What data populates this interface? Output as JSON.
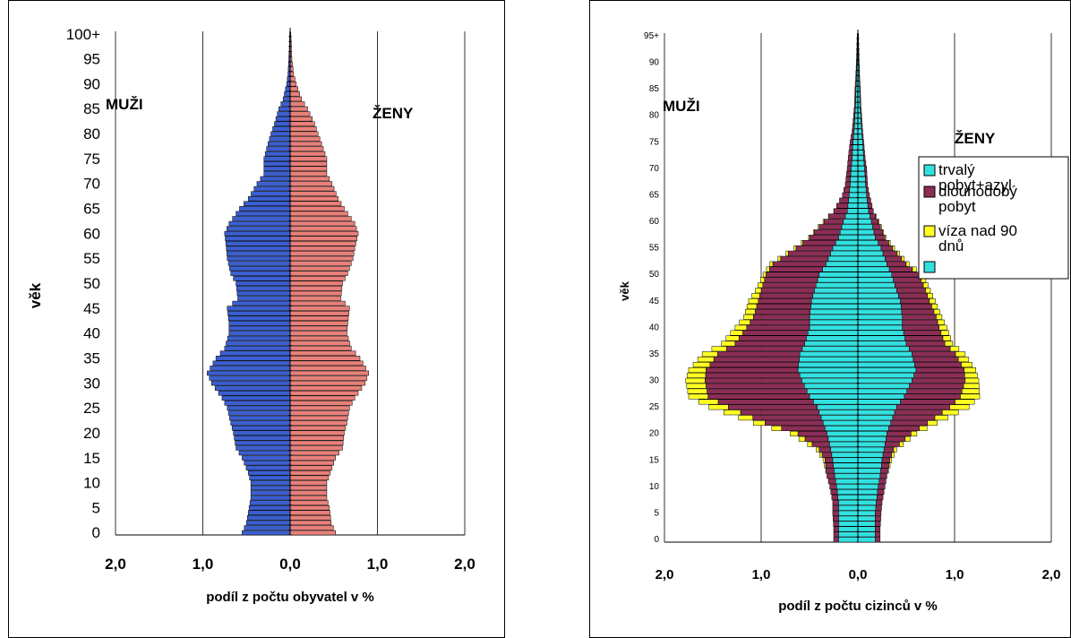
{
  "chart_data": [
    {
      "type": "bar",
      "orientation": "horizontal-pyramid",
      "xlabel": "podíl z počtu obyvatel v %",
      "ylabel": "věk",
      "xlim": [
        -2.0,
        2.0
      ],
      "ylim": [
        0,
        100
      ],
      "x_ticks": [
        "2,0",
        "1,0",
        "0,0",
        "1,0",
        "2,0"
      ],
      "y_ticks": [
        "0",
        "5",
        "10",
        "15",
        "20",
        "25",
        "30",
        "35",
        "40",
        "45",
        "50",
        "55",
        "60",
        "65",
        "70",
        "75",
        "80",
        "85",
        "90",
        "95",
        "100+"
      ],
      "grid": "vertical",
      "annotations": {
        "left": "MUŽI",
        "right": "ŽENY"
      },
      "colors": {
        "men": "#3b5fcf",
        "women": "#e8807a",
        "outline": "#000000"
      },
      "ages": [
        0,
        2,
        5,
        7,
        10,
        12,
        15,
        17,
        20,
        22,
        25,
        27,
        30,
        32,
        35,
        37,
        40,
        42,
        45,
        47,
        50,
        52,
        55,
        57,
        60,
        62,
        65,
        67,
        70,
        72,
        75,
        77,
        80,
        82,
        85,
        87,
        90,
        92,
        95,
        97,
        100
      ],
      "series": [
        {
          "values": [
            0.55,
            0.5,
            0.47,
            0.45,
            0.45,
            0.48,
            0.55,
            0.62,
            0.65,
            0.68,
            0.72,
            0.78,
            0.9,
            0.95,
            0.85,
            0.75,
            0.7,
            0.7,
            0.72,
            0.6,
            0.62,
            0.68,
            0.72,
            0.73,
            0.75,
            0.7,
            0.58,
            0.48,
            0.38,
            0.3,
            0.3,
            0.27,
            0.22,
            0.18,
            0.13,
            0.08,
            0.04,
            0.025,
            0.015,
            0.01,
            0.005
          ]
        },
        {
          "values": [
            0.52,
            0.47,
            0.45,
            0.42,
            0.42,
            0.46,
            0.52,
            0.6,
            0.62,
            0.65,
            0.68,
            0.74,
            0.86,
            0.9,
            0.8,
            0.7,
            0.65,
            0.66,
            0.68,
            0.58,
            0.6,
            0.66,
            0.72,
            0.74,
            0.78,
            0.74,
            0.62,
            0.55,
            0.48,
            0.42,
            0.42,
            0.38,
            0.32,
            0.28,
            0.2,
            0.13,
            0.07,
            0.04,
            0.02,
            0.015,
            0.008
          ]
        }
      ]
    },
    {
      "type": "bar",
      "orientation": "horizontal-pyramid-stacked",
      "xlabel": "podíl z počtu cizinců v %",
      "ylabel": "věk",
      "xlim": [
        -2.0,
        2.0
      ],
      "ylim": [
        0,
        95
      ],
      "x_ticks": [
        "2,0",
        "1,0",
        "0,0",
        "1,0",
        "2,0"
      ],
      "y_ticks": [
        "0",
        "5",
        "10",
        "15",
        "20",
        "25",
        "30",
        "35",
        "40",
        "45",
        "50",
        "55",
        "60",
        "65",
        "70",
        "75",
        "80",
        "85",
        "90",
        "95+"
      ],
      "grid": "vertical",
      "annotations": {
        "left": "MUŽI",
        "right": "ŽENY"
      },
      "legend": {
        "position": "right",
        "entries": [
          "trvalý pobyt+azyl",
          "dlouhodobý pobyt",
          "víza nad 90 dnů",
          ""
        ]
      },
      "colors": {
        "permanent": "#33e0e0",
        "longterm": "#8b2e55",
        "visa": "#ffff22",
        "outline": "#000000"
      },
      "ages": [
        0,
        2,
        5,
        7,
        10,
        12,
        15,
        17,
        20,
        22,
        25,
        27,
        30,
        32,
        35,
        37,
        40,
        42,
        45,
        47,
        50,
        52,
        55,
        57,
        60,
        62,
        65,
        67,
        70,
        72,
        75,
        77,
        80,
        82,
        85,
        87,
        90,
        92,
        95
      ],
      "series": [
        {
          "name": "trvalý pobyt+azyl",
          "values": [
            0.2,
            0.2,
            0.2,
            0.2,
            0.22,
            0.24,
            0.26,
            0.28,
            0.32,
            0.36,
            0.42,
            0.5,
            0.58,
            0.62,
            0.6,
            0.55,
            0.5,
            0.5,
            0.48,
            0.45,
            0.4,
            0.33,
            0.26,
            0.2,
            0.15,
            0.11,
            0.09,
            0.08,
            0.07,
            0.06,
            0.05,
            0.04,
            0.03,
            0.025,
            0.02,
            0.015,
            0.01,
            0.008,
            0.005
          ]
        },
        {
          "name": "dlouhodobý pobyt",
          "values": [
            0.05,
            0.05,
            0.06,
            0.06,
            0.07,
            0.08,
            0.08,
            0.12,
            0.3,
            0.6,
            0.92,
            1.05,
            1.0,
            0.95,
            0.85,
            0.72,
            0.65,
            0.58,
            0.55,
            0.55,
            0.55,
            0.55,
            0.38,
            0.3,
            0.2,
            0.14,
            0.07,
            0.05,
            0.04,
            0.04,
            0.03,
            0.02,
            0.015,
            0.01,
            0.01,
            0.008,
            0.005,
            0.003,
            0.002
          ]
        },
        {
          "name": "víza nad 90 dnů",
          "values": [
            0.0,
            0.0,
            0.0,
            0.0,
            0.0,
            0.0,
            0.02,
            0.03,
            0.08,
            0.12,
            0.2,
            0.2,
            0.2,
            0.18,
            0.16,
            0.14,
            0.12,
            0.1,
            0.1,
            0.06,
            0.03,
            0.03,
            0.02,
            0.01,
            0.01,
            0.0,
            0.0,
            0.0,
            0.0,
            0.0,
            0.0,
            0.0,
            0.0,
            0.0,
            0.0,
            0.0,
            0.0,
            0.0,
            0.0
          ]
        },
        {
          "name": "trvalý pobyt+azyl",
          "values": [
            0.18,
            0.18,
            0.18,
            0.19,
            0.21,
            0.23,
            0.25,
            0.27,
            0.3,
            0.34,
            0.4,
            0.48,
            0.56,
            0.6,
            0.56,
            0.5,
            0.46,
            0.46,
            0.44,
            0.4,
            0.35,
            0.3,
            0.24,
            0.18,
            0.14,
            0.11,
            0.09,
            0.08,
            0.07,
            0.06,
            0.05,
            0.04,
            0.03,
            0.025,
            0.02,
            0.015,
            0.01,
            0.008,
            0.005
          ]
        },
        {
          "name": "dlouhodobý pobyt",
          "values": [
            0.05,
            0.05,
            0.06,
            0.06,
            0.07,
            0.07,
            0.08,
            0.1,
            0.25,
            0.38,
            0.55,
            0.58,
            0.55,
            0.5,
            0.45,
            0.4,
            0.38,
            0.35,
            0.3,
            0.3,
            0.28,
            0.2,
            0.12,
            0.1,
            0.07,
            0.05,
            0.03,
            0.02,
            0.02,
            0.015,
            0.01,
            0.01,
            0.008,
            0.006,
            0.005,
            0.004,
            0.003,
            0.002,
            0.001
          ]
        },
        {
          "name": "víza nad 90 dnů",
          "values": [
            0.0,
            0.0,
            0.0,
            0.0,
            0.0,
            0.0,
            0.02,
            0.03,
            0.06,
            0.1,
            0.2,
            0.2,
            0.14,
            0.12,
            0.1,
            0.08,
            0.08,
            0.06,
            0.06,
            0.05,
            0.05,
            0.03,
            0.02,
            0.01,
            0.01,
            0.0,
            0.0,
            0.0,
            0.0,
            0.0,
            0.0,
            0.0,
            0.0,
            0.0,
            0.0,
            0.0,
            0.0,
            0.0,
            0.0
          ]
        }
      ]
    }
  ]
}
